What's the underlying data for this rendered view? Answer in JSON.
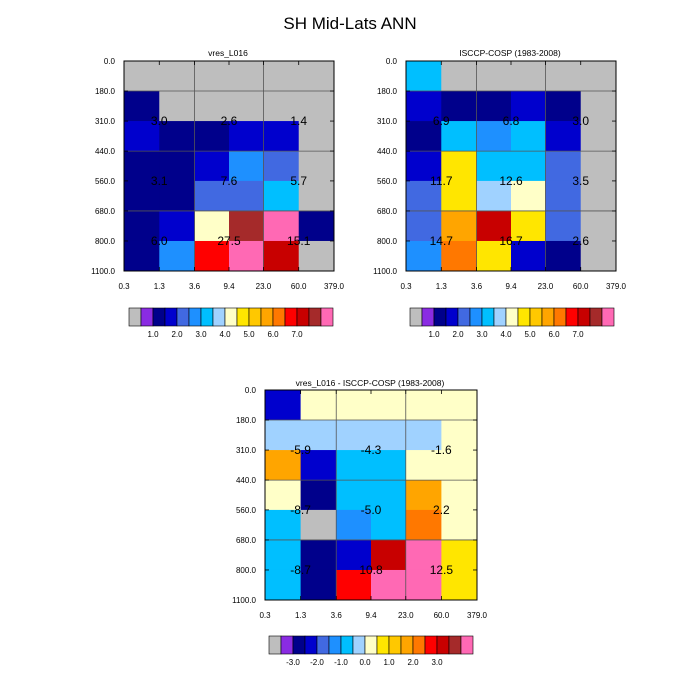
{
  "figure_title": "SH Mid-Lats ANN",
  "chart_data": [
    {
      "type": "heatmap",
      "title": "vres_L016",
      "x_ticks": [
        "0.3",
        "1.3",
        "3.6",
        "9.4",
        "23.0",
        "60.0",
        "379.0"
      ],
      "y_ticks": [
        "0.0",
        "180.0",
        "310.0",
        "440.0",
        "560.0",
        "680.0",
        "800.0",
        "1100.0"
      ],
      "cells": [
        [
          0,
          0,
          0,
          0,
          0,
          0
        ],
        [
          2,
          0,
          0,
          0,
          0,
          0
        ],
        [
          3,
          2,
          2,
          3,
          3,
          0
        ],
        [
          2,
          2,
          3,
          5,
          4,
          0
        ],
        [
          2,
          2,
          4,
          4,
          6,
          0
        ],
        [
          2,
          3,
          8,
          15,
          16,
          2
        ],
        [
          2,
          5,
          13,
          16,
          14,
          0
        ]
      ],
      "group_values": [
        [
          "3.0",
          "2.6",
          "1.4"
        ],
        [
          "3.1",
          "7.6",
          "5.7"
        ],
        [
          "6.0",
          "27.5",
          "15.1"
        ]
      ],
      "colorbar_labels": [
        "1.0",
        "2.0",
        "3.0",
        "4.0",
        "5.0",
        "6.0",
        "7.0"
      ]
    },
    {
      "type": "heatmap",
      "title": "ISCCP-COSP (1983-2008)",
      "x_ticks": [
        "0.3",
        "1.3",
        "3.6",
        "9.4",
        "23.0",
        "60.0",
        "379.0"
      ],
      "y_ticks": [
        "0.0",
        "180.0",
        "310.0",
        "440.0",
        "560.0",
        "680.0",
        "800.0",
        "1100.0"
      ],
      "cells": [
        [
          6,
          0,
          0,
          0,
          0,
          0
        ],
        [
          3,
          2,
          2,
          3,
          2,
          0
        ],
        [
          2,
          6,
          5,
          6,
          3,
          0
        ],
        [
          3,
          9,
          6,
          6,
          4,
          0
        ],
        [
          4,
          9,
          7,
          8,
          4,
          0
        ],
        [
          4,
          11,
          14,
          9,
          4,
          0
        ],
        [
          5,
          12,
          9,
          3,
          2,
          0
        ]
      ],
      "group_values": [
        [
          "6.9",
          "6.8",
          "3.0"
        ],
        [
          "11.7",
          "12.6",
          "3.5"
        ],
        [
          "14.7",
          "16.7",
          "2.6"
        ]
      ],
      "colorbar_labels": [
        "1.0",
        "2.0",
        "3.0",
        "4.0",
        "5.0",
        "6.0",
        "7.0"
      ]
    },
    {
      "type": "heatmap",
      "title": "vres_L016 - ISCCP-COSP (1983-2008)",
      "x_ticks": [
        "0.3",
        "1.3",
        "3.6",
        "9.4",
        "23.0",
        "60.0",
        "379.0"
      ],
      "y_ticks": [
        "0.0",
        "180.0",
        "310.0",
        "440.0",
        "560.0",
        "680.0",
        "800.0",
        "1100.0"
      ],
      "cells": [
        [
          3,
          8,
          8,
          8,
          8,
          8
        ],
        [
          7,
          7,
          7,
          7,
          7,
          8
        ],
        [
          11,
          3,
          6,
          6,
          8,
          8
        ],
        [
          8,
          2,
          6,
          6,
          11,
          8
        ],
        [
          6,
          0,
          5,
          6,
          12,
          8
        ],
        [
          6,
          2,
          3,
          14,
          16,
          9
        ],
        [
          6,
          2,
          13,
          16,
          16,
          9
        ]
      ],
      "group_values": [
        [
          "-5.9",
          "-4.3",
          "-1.6"
        ],
        [
          "-8.7",
          "-5.0",
          "2.2"
        ],
        [
          "-8.7",
          "10.8",
          "12.5"
        ]
      ],
      "colorbar_labels": [
        "-3.0",
        "-2.0",
        "-1.0",
        "0.0",
        "1.0",
        "2.0",
        "3.0"
      ]
    }
  ],
  "palette": [
    "#bebebe",
    "#8a2be2",
    "#00008b",
    "#0000cd",
    "#4169e1",
    "#1e90ff",
    "#00bfff",
    "#a0d2ff",
    "#ffffc8",
    "#ffe600",
    "#ffc800",
    "#ffa500",
    "#ff7800",
    "#ff0000",
    "#c80000",
    "#a52a2a",
    "#ff69b4"
  ]
}
